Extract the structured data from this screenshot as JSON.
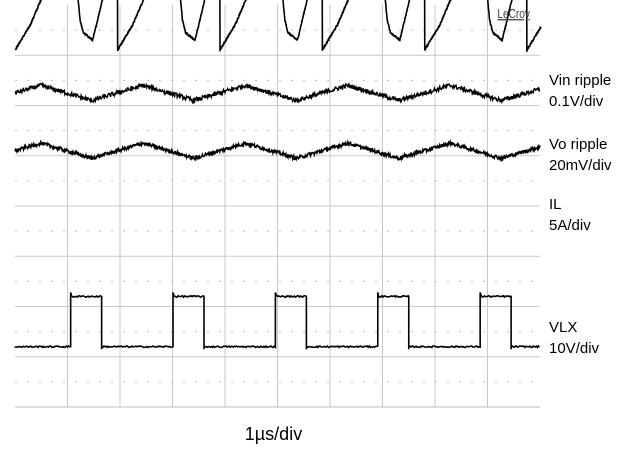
{
  "brand": "LeCroy",
  "timebase": "1µs/div",
  "chart_data": {
    "type": "line",
    "title": "",
    "instrument_brand": "LeCroy",
    "time_per_div": "1µs",
    "x_divisions": 10,
    "y_divisions": 8,
    "switching_period_us": 1.95,
    "grid": true,
    "series": [
      {
        "name": "Vin ripple",
        "scale": "0.1V/div",
        "waveform": "sawtooth ramp with spike and dip at each switching edge",
        "x_us": [
          0.0,
          0.29,
          0.78,
          1.06,
          1.08,
          1.1,
          1.24,
          1.3,
          1.48,
          1.95
        ],
        "y_div": [
          3.1,
          3.6,
          4.8,
          5.35,
          4.7,
          5.25,
          3.7,
          3.45,
          3.3,
          5.35
        ]
      },
      {
        "name": "Vo ripple",
        "scale": "20mV/div",
        "waveform": "small sinusoidal ripple with noise",
        "x_us": [
          0.0,
          0.49,
          0.98,
          1.46,
          1.95
        ],
        "y_div": [
          2.25,
          2.4,
          2.25,
          2.1,
          2.25
        ]
      },
      {
        "name": "IL",
        "scale": "5A/div",
        "waveform": "small triangular ripple with noise",
        "x_us": [
          0.0,
          0.49,
          0.98,
          1.46,
          1.95
        ],
        "y_div": [
          1.1,
          1.25,
          1.1,
          0.95,
          1.1
        ]
      },
      {
        "name": "VLX",
        "scale": "10V/div",
        "waveform": "rectangular switch-node pulses",
        "x_us": [
          0.0,
          1.06,
          1.06,
          1.65,
          1.65,
          3.01
        ],
        "y_div": [
          -2.8,
          -2.8,
          -1.8,
          -1.8,
          -2.8,
          -2.8
        ]
      }
    ]
  }
}
